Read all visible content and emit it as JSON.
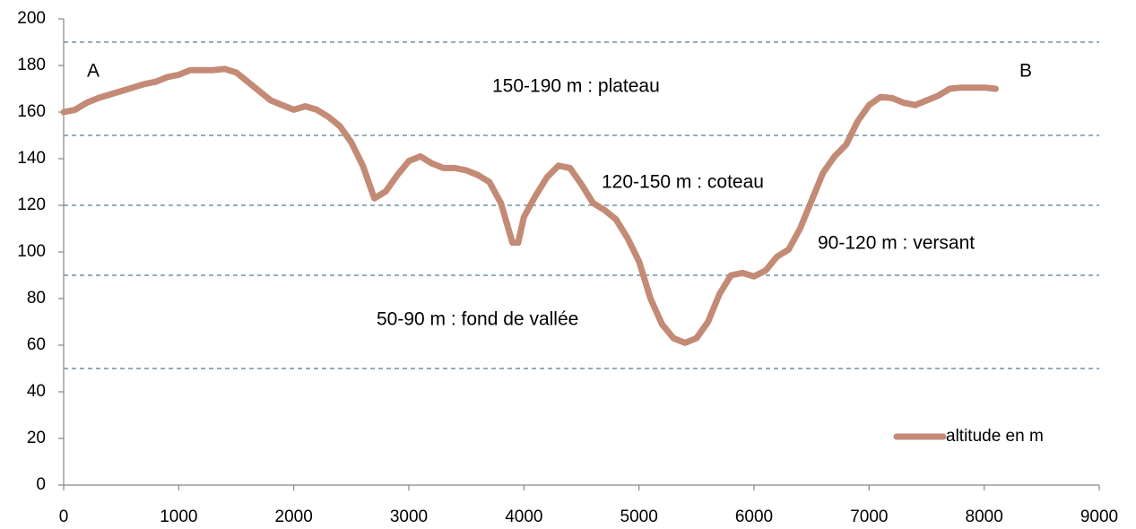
{
  "chart_data": {
    "type": "line",
    "x": [
      0,
      100,
      200,
      300,
      400,
      500,
      600,
      700,
      800,
      900,
      1000,
      1100,
      1200,
      1300,
      1400,
      1500,
      1600,
      1700,
      1800,
      1900,
      2000,
      2100,
      2200,
      2300,
      2400,
      2500,
      2600,
      2700,
      2800,
      2900,
      3000,
      3100,
      3200,
      3300,
      3400,
      3500,
      3600,
      3700,
      3800,
      3900,
      3950,
      4000,
      4100,
      4200,
      4300,
      4400,
      4500,
      4600,
      4700,
      4800,
      4900,
      5000,
      5100,
      5200,
      5300,
      5400,
      5500,
      5600,
      5700,
      5800,
      5900,
      6000,
      6100,
      6200,
      6300,
      6400,
      6500,
      6600,
      6700,
      6800,
      6900,
      7000,
      7100,
      7200,
      7300,
      7400,
      7500,
      7600,
      7700,
      7800,
      7900,
      8000,
      8100
    ],
    "series": [
      {
        "name": "altitude en m",
        "color": "#c38a75",
        "values": [
          160,
          161,
          164,
          166,
          167.5,
          169,
          170.5,
          172,
          173,
          175,
          176,
          178,
          178,
          178,
          178.5,
          177,
          173,
          169,
          165,
          163,
          161,
          162.5,
          161,
          158,
          154,
          147,
          137,
          123,
          126,
          133,
          139,
          141,
          138,
          136,
          136,
          135,
          133,
          130,
          121,
          104,
          104,
          115,
          124,
          132,
          137,
          136,
          129,
          121,
          118,
          114,
          106,
          96,
          80,
          69,
          63,
          61,
          63,
          70,
          82,
          90,
          91,
          89.5,
          92,
          98,
          101,
          110,
          122,
          134,
          141,
          146,
          156,
          163,
          166.5,
          166,
          164,
          163,
          165,
          167,
          170,
          170.5,
          170.5,
          170.5,
          170
        ]
      }
    ],
    "xlim": [
      0,
      9000
    ],
    "xticks": [
      0,
      1000,
      2000,
      3000,
      4000,
      5000,
      6000,
      7000,
      8000,
      9000
    ],
    "ylim": [
      0,
      200
    ],
    "yticks": [
      0,
      20,
      40,
      60,
      80,
      100,
      120,
      140,
      160,
      180,
      200
    ],
    "reference_lines": [
      190,
      150,
      120,
      90,
      50
    ],
    "annotations": [
      "A",
      "B",
      "150-190 m : plateau",
      "120-150 m : coteau",
      "90-120 m : versant",
      "50-90 m : fond de vallée"
    ],
    "legend": "bottom-right"
  }
}
